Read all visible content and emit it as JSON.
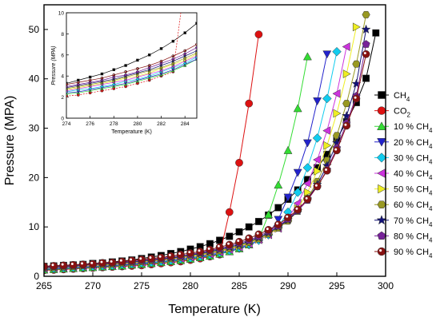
{
  "chart_data": [
    {
      "type": "scatter",
      "title": "",
      "xlabel": "Temperature (K)",
      "ylabel": "Pressure (MPA)",
      "xlim": [
        265,
        300
      ],
      "ylim": [
        0,
        55
      ],
      "xticks": [
        265,
        270,
        275,
        280,
        285,
        290,
        295,
        300
      ],
      "yticks": [
        0,
        10,
        20,
        30,
        40,
        50
      ],
      "grid": false,
      "legend_position": "right",
      "series": [
        {
          "name": "CH4",
          "label_main": "CH",
          "label_sub": "4",
          "color": "#000000",
          "marker": "square",
          "x": [
            265,
            266,
            267,
            268,
            269,
            270,
            271,
            272,
            273,
            274,
            275,
            276,
            277,
            278,
            279,
            280,
            281,
            282,
            283,
            284,
            285,
            286,
            287,
            288,
            289,
            290,
            291,
            292,
            293,
            294,
            295,
            296,
            297,
            298,
            299
          ],
          "y": [
            2.0,
            2.1,
            2.2,
            2.3,
            2.4,
            2.6,
            2.7,
            2.9,
            3.1,
            3.3,
            3.6,
            3.9,
            4.2,
            4.6,
            5.0,
            5.5,
            6.0,
            6.6,
            7.3,
            8.1,
            9.0,
            10.0,
            11.1,
            12.4,
            13.9,
            15.6,
            17.5,
            19.6,
            22.0,
            24.7,
            27.8,
            31.3,
            35.2,
            40.1,
            49.3
          ]
        },
        {
          "name": "CO2",
          "label_main": "CO",
          "label_sub": "2",
          "color": "#dd1111",
          "marker": "circle",
          "x": [
            265,
            266,
            267,
            268,
            269,
            270,
            271,
            272,
            273,
            274,
            275,
            276,
            277,
            278,
            279,
            280,
            281,
            282,
            283,
            284,
            285,
            286,
            287
          ],
          "y": [
            1.2,
            1.3,
            1.4,
            1.5,
            1.6,
            1.7,
            1.8,
            1.9,
            2.0,
            2.1,
            2.2,
            2.4,
            2.6,
            2.8,
            3.0,
            3.3,
            3.6,
            4.0,
            4.4,
            13.0,
            23.0,
            35.0,
            49.0
          ]
        },
        {
          "name": "10 % CH4",
          "label_main": "10 % CH",
          "label_sub": "4",
          "color": "#33dd33",
          "marker": "triangle-up",
          "x": [
            265,
            266,
            267,
            268,
            269,
            270,
            271,
            272,
            273,
            274,
            275,
            276,
            277,
            278,
            279,
            280,
            281,
            282,
            283,
            284,
            285,
            286,
            287,
            288,
            289,
            290,
            291,
            292
          ],
          "y": [
            1.3,
            1.4,
            1.5,
            1.6,
            1.7,
            1.8,
            1.9,
            2.0,
            2.1,
            2.3,
            2.4,
            2.6,
            2.8,
            3.0,
            3.2,
            3.5,
            3.8,
            4.1,
            4.5,
            5.0,
            5.6,
            6.4,
            7.5,
            12.5,
            18.5,
            25.5,
            34.0,
            44.5
          ]
        },
        {
          "name": "20 % CH4",
          "label_main": "20 % CH",
          "label_sub": "4",
          "color": "#2222cc",
          "marker": "triangle-down",
          "x": [
            265,
            266,
            267,
            268,
            269,
            270,
            271,
            272,
            273,
            274,
            275,
            276,
            277,
            278,
            279,
            280,
            281,
            282,
            283,
            284,
            285,
            286,
            287,
            288,
            289,
            290,
            291,
            292,
            293,
            294
          ],
          "y": [
            1.4,
            1.5,
            1.6,
            1.7,
            1.8,
            1.9,
            2.0,
            2.1,
            2.2,
            2.4,
            2.5,
            2.7,
            2.9,
            3.1,
            3.3,
            3.6,
            3.9,
            4.2,
            4.6,
            5.1,
            5.6,
            6.3,
            7.2,
            8.5,
            11.5,
            16.0,
            21.0,
            27.0,
            35.5,
            45.0
          ]
        },
        {
          "name": "30 % CH4",
          "label_main": "30 % CH",
          "label_sub": "4",
          "color": "#11ccee",
          "marker": "diamond",
          "x": [
            265,
            266,
            267,
            268,
            269,
            270,
            271,
            272,
            273,
            274,
            275,
            276,
            277,
            278,
            279,
            280,
            281,
            282,
            283,
            284,
            285,
            286,
            287,
            288,
            289,
            290,
            291,
            292,
            293,
            294,
            295
          ],
          "y": [
            1.5,
            1.6,
            1.7,
            1.8,
            1.9,
            2.0,
            2.1,
            2.2,
            2.4,
            2.5,
            2.7,
            2.8,
            3.0,
            3.2,
            3.5,
            3.7,
            4.0,
            4.4,
            4.8,
            5.2,
            5.8,
            6.5,
            7.3,
            8.4,
            10.0,
            13.0,
            17.0,
            22.0,
            28.0,
            36.0,
            45.5
          ]
        },
        {
          "name": "40 % CH4",
          "label_main": "40 % CH",
          "label_sub": "4",
          "color": "#cc33dd",
          "marker": "triangle-left",
          "x": [
            265,
            266,
            267,
            268,
            269,
            270,
            271,
            272,
            273,
            274,
            275,
            276,
            277,
            278,
            279,
            280,
            281,
            282,
            283,
            284,
            285,
            286,
            287,
            288,
            289,
            290,
            291,
            292,
            293,
            294,
            295,
            296
          ],
          "y": [
            1.6,
            1.7,
            1.8,
            1.9,
            2.0,
            2.1,
            2.2,
            2.3,
            2.5,
            2.6,
            2.8,
            3.0,
            3.2,
            3.4,
            3.6,
            3.9,
            4.2,
            4.5,
            4.9,
            5.4,
            5.9,
            6.6,
            7.4,
            8.4,
            9.7,
            11.8,
            14.8,
            18.8,
            23.6,
            29.5,
            37.0,
            46.5
          ]
        },
        {
          "name": "50 % CH4",
          "label_main": "50 % CH",
          "label_sub": "4",
          "color": "#eeee22",
          "marker": "triangle-right",
          "x": [
            265,
            266,
            267,
            268,
            269,
            270,
            271,
            272,
            273,
            274,
            275,
            276,
            277,
            278,
            279,
            280,
            281,
            282,
            283,
            284,
            285,
            286,
            287,
            288,
            289,
            290,
            291,
            292,
            293,
            294,
            295,
            296,
            297
          ],
          "y": [
            1.7,
            1.8,
            1.9,
            2.0,
            2.1,
            2.2,
            2.3,
            2.4,
            2.6,
            2.7,
            2.9,
            3.1,
            3.3,
            3.5,
            3.8,
            4.0,
            4.3,
            4.7,
            5.1,
            5.5,
            6.1,
            6.7,
            7.5,
            8.5,
            9.7,
            11.3,
            13.7,
            17.0,
            21.3,
            26.5,
            33.0,
            41.0,
            50.5
          ]
        },
        {
          "name": "60 % CH4",
          "label_main": "60 % CH",
          "label_sub": "4",
          "color": "#999922",
          "marker": "hexagon",
          "x": [
            265,
            266,
            267,
            268,
            269,
            270,
            271,
            272,
            273,
            274,
            275,
            276,
            277,
            278,
            279,
            280,
            281,
            282,
            283,
            284,
            285,
            286,
            287,
            288,
            289,
            290,
            291,
            292,
            293,
            294,
            295,
            296,
            297,
            298
          ],
          "y": [
            1.7,
            1.8,
            1.9,
            2.0,
            2.2,
            2.3,
            2.4,
            2.5,
            2.7,
            2.8,
            3.0,
            3.2,
            3.4,
            3.6,
            3.9,
            4.2,
            4.5,
            4.8,
            5.2,
            5.7,
            6.2,
            6.9,
            7.6,
            8.6,
            9.8,
            11.2,
            13.2,
            15.8,
            19.2,
            23.5,
            28.5,
            35.0,
            43.0,
            53.0
          ]
        },
        {
          "name": "70 % CH4",
          "label_main": "70 % CH",
          "label_sub": "4",
          "color": "#111177",
          "marker": "star",
          "x": [
            265,
            266,
            267,
            268,
            269,
            270,
            271,
            272,
            273,
            274,
            275,
            276,
            277,
            278,
            279,
            280,
            281,
            282,
            283,
            284,
            285,
            286,
            287,
            288,
            289,
            290,
            291,
            292,
            293,
            294,
            295,
            296,
            297,
            298
          ],
          "y": [
            1.8,
            1.9,
            2.0,
            2.1,
            2.2,
            2.4,
            2.5,
            2.6,
            2.8,
            2.9,
            3.1,
            3.3,
            3.5,
            3.7,
            4.0,
            4.3,
            4.6,
            5.0,
            5.4,
            5.9,
            6.4,
            7.1,
            7.8,
            8.8,
            10.0,
            11.4,
            13.2,
            15.6,
            18.6,
            22.4,
            27.0,
            32.5,
            39.0,
            50.0
          ]
        },
        {
          "name": "80 % CH4",
          "label_main": "80 % CH",
          "label_sub": "4",
          "color": "#772299",
          "marker": "pentagon",
          "x": [
            265,
            266,
            267,
            268,
            269,
            270,
            271,
            272,
            273,
            274,
            275,
            276,
            277,
            278,
            279,
            280,
            281,
            282,
            283,
            284,
            285,
            286,
            287,
            288,
            289,
            290,
            291,
            292,
            293,
            294,
            295,
            296,
            297,
            298
          ],
          "y": [
            1.9,
            2.0,
            2.1,
            2.2,
            2.3,
            2.4,
            2.6,
            2.7,
            2.9,
            3.0,
            3.2,
            3.4,
            3.6,
            3.9,
            4.1,
            4.4,
            4.8,
            5.2,
            5.6,
            6.1,
            6.7,
            7.3,
            8.1,
            9.1,
            10.2,
            11.6,
            13.3,
            15.4,
            18.2,
            21.6,
            26.0,
            31.0,
            36.5,
            47.0
          ]
        },
        {
          "name": "90 % CH4",
          "label_main": "90 % CH",
          "label_sub": "4",
          "color": "#881111",
          "marker": "circle-dot",
          "x": [
            265,
            266,
            267,
            268,
            269,
            270,
            271,
            272,
            273,
            274,
            275,
            276,
            277,
            278,
            279,
            280,
            281,
            282,
            283,
            284,
            285,
            286,
            287,
            288,
            289,
            290,
            291,
            292,
            293,
            294,
            295,
            296,
            297,
            298
          ],
          "y": [
            2.0,
            2.1,
            2.2,
            2.3,
            2.4,
            2.5,
            2.7,
            2.8,
            3.0,
            3.2,
            3.4,
            3.6,
            3.8,
            4.1,
            4.4,
            4.7,
            5.0,
            5.4,
            5.9,
            6.4,
            7.0,
            7.7,
            8.5,
            9.4,
            10.5,
            11.9,
            13.5,
            15.6,
            18.2,
            21.4,
            25.5,
            30.5,
            36.0,
            45.0
          ]
        }
      ]
    },
    {
      "type": "line",
      "title": "",
      "xlabel": "Temperature (K)",
      "ylabel": "Pressure (MPA)",
      "xlim": [
        274,
        285
      ],
      "ylim": [
        0,
        10
      ],
      "xticks": [
        274,
        276,
        278,
        280,
        282,
        284
      ],
      "yticks": [
        0,
        2,
        4,
        6,
        8,
        10
      ],
      "grid": false
    }
  ]
}
